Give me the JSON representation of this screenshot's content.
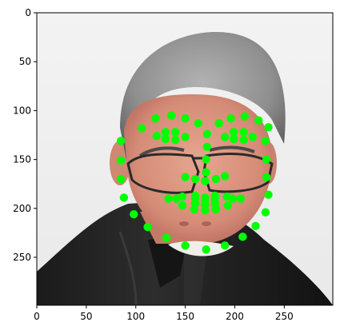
{
  "chart_data": {
    "type": "scatter",
    "title": "",
    "xlabel": "",
    "ylabel": "",
    "xlim": [
      0,
      299
    ],
    "ylim": [
      299,
      0
    ],
    "y_inverted": true,
    "grid": false,
    "image_background": "portrait photo of a smiling man with gray hair and black-rimmed glasses, wearing a black leather jacket",
    "x_ticks": [
      0,
      50,
      100,
      150,
      200,
      250
    ],
    "y_ticks": [
      0,
      50,
      100,
      150,
      200,
      250
    ],
    "marker": {
      "color": "#00ff00",
      "shape": "circle"
    },
    "landmarks": {
      "jaw": [
        [
          85,
          131
        ],
        [
          85,
          151
        ],
        [
          85,
          170
        ],
        [
          88,
          189
        ],
        [
          98,
          206
        ],
        [
          112,
          219
        ],
        [
          131,
          230
        ],
        [
          150,
          238
        ],
        [
          171,
          242
        ],
        [
          190,
          238
        ],
        [
          208,
          229
        ],
        [
          221,
          218
        ],
        [
          231,
          204
        ],
        [
          234,
          186
        ],
        [
          232,
          168
        ],
        [
          232,
          150
        ],
        [
          231,
          131
        ]
      ],
      "right_brow": [
        [
          106,
          118
        ],
        [
          120,
          108
        ],
        [
          136,
          105
        ],
        [
          150,
          108
        ],
        [
          163,
          113
        ]
      ],
      "left_brow": [
        [
          184,
          113
        ],
        [
          196,
          108
        ],
        [
          210,
          106
        ],
        [
          224,
          110
        ],
        [
          234,
          117
        ]
      ],
      "nose_bridge": [
        [
          172,
          124
        ],
        [
          172,
          137
        ],
        [
          171,
          150
        ],
        [
          171,
          163
        ]
      ],
      "nose_bottom": [
        [
          150,
          168
        ],
        [
          160,
          170
        ],
        [
          170,
          172
        ],
        [
          181,
          170
        ],
        [
          190,
          167
        ]
      ],
      "right_eye": [
        [
          121,
          126
        ],
        [
          130,
          122
        ],
        [
          140,
          122
        ],
        [
          150,
          127
        ],
        [
          140,
          130
        ],
        [
          130,
          129
        ]
      ],
      "left_eye": [
        [
          190,
          127
        ],
        [
          199,
          122
        ],
        [
          209,
          122
        ],
        [
          218,
          127
        ],
        [
          209,
          130
        ],
        [
          199,
          129
        ]
      ],
      "outer_lips": [
        [
          133,
          190
        ],
        [
          147,
          188
        ],
        [
          160,
          187
        ],
        [
          170,
          189
        ],
        [
          180,
          187
        ],
        [
          192,
          188
        ],
        [
          206,
          190
        ],
        [
          193,
          197
        ],
        [
          181,
          201
        ],
        [
          170,
          202
        ],
        [
          159,
          201
        ],
        [
          147,
          197
        ]
      ],
      "inner_lips": [
        [
          141,
          190
        ],
        [
          160,
          190
        ],
        [
          170,
          191
        ],
        [
          180,
          190
        ],
        [
          198,
          190
        ],
        [
          180,
          195
        ],
        [
          170,
          196
        ],
        [
          160,
          195
        ]
      ]
    }
  }
}
